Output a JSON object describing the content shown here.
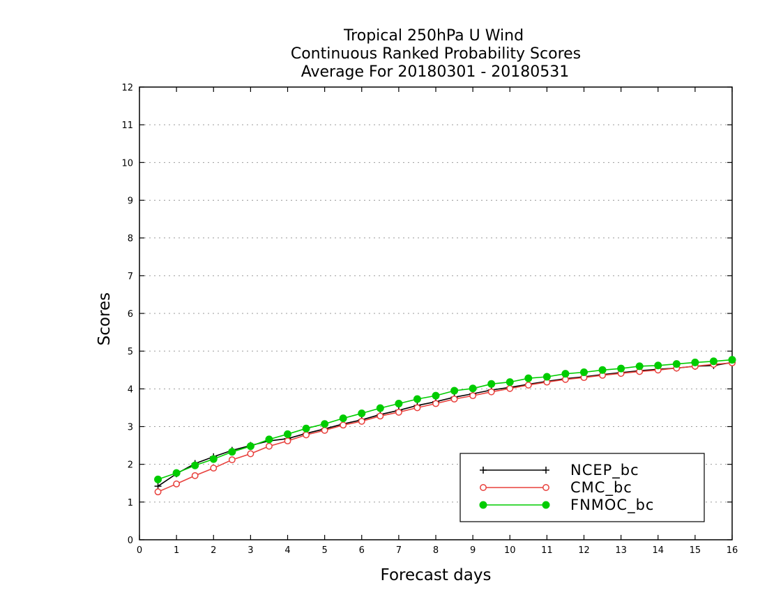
{
  "chart_data": {
    "type": "line",
    "title_lines": [
      "Tropical 250hPa U Wind",
      "Continuous Ranked Probability Scores",
      "Average For 20180301 - 20180531"
    ],
    "xlabel": "Forecast days",
    "ylabel": "Scores",
    "xlim": [
      0,
      16
    ],
    "ylim": [
      0,
      12
    ],
    "x_ticks": [
      "0",
      "1",
      "2",
      "3",
      "4",
      "5",
      "6",
      "7",
      "8",
      "9",
      "10",
      "11",
      "12",
      "13",
      "14",
      "15",
      "16"
    ],
    "y_ticks": [
      "0",
      "1",
      "2",
      "3",
      "4",
      "5",
      "6",
      "7",
      "8",
      "9",
      "10",
      "11",
      "12"
    ],
    "grid": "horizontal dotted",
    "legend_position": "bottom-right",
    "x": [
      0.5,
      1,
      1.5,
      2,
      2.5,
      3,
      3.5,
      4,
      4.5,
      5,
      5.5,
      6,
      6.5,
      7,
      7.5,
      8,
      8.5,
      9,
      9.5,
      10,
      10.5,
      11,
      11.5,
      12,
      12.5,
      13,
      13.5,
      14,
      14.5,
      15,
      15.5,
      16
    ],
    "series": [
      {
        "name": "NCEP_bc",
        "color": "#000000",
        "marker": "plus",
        "values": [
          1.42,
          1.75,
          2.02,
          2.2,
          2.37,
          2.5,
          2.62,
          2.68,
          2.82,
          2.94,
          3.07,
          3.18,
          3.32,
          3.43,
          3.56,
          3.66,
          3.78,
          3.87,
          3.97,
          4.04,
          4.12,
          4.2,
          4.27,
          4.32,
          4.38,
          4.43,
          4.48,
          4.52,
          4.55,
          4.6,
          4.62,
          4.7
        ]
      },
      {
        "name": "CMC_bc",
        "color": "#e8403c",
        "marker": "open-circle",
        "values": [
          1.27,
          1.48,
          1.7,
          1.9,
          2.12,
          2.28,
          2.48,
          2.62,
          2.78,
          2.9,
          3.04,
          3.14,
          3.28,
          3.38,
          3.5,
          3.61,
          3.73,
          3.82,
          3.92,
          4.01,
          4.1,
          4.18,
          4.25,
          4.3,
          4.36,
          4.41,
          4.46,
          4.5,
          4.55,
          4.6,
          4.65,
          4.69
        ]
      },
      {
        "name": "FNMOC_bc",
        "color": "#00cc00",
        "marker": "filled-circle",
        "values": [
          1.6,
          1.77,
          1.97,
          2.14,
          2.33,
          2.48,
          2.66,
          2.8,
          2.95,
          3.07,
          3.22,
          3.35,
          3.49,
          3.61,
          3.73,
          3.82,
          3.95,
          4.01,
          4.13,
          4.18,
          4.28,
          4.32,
          4.4,
          4.44,
          4.5,
          4.54,
          4.6,
          4.62,
          4.66,
          4.7,
          4.73,
          4.77
        ]
      }
    ]
  }
}
